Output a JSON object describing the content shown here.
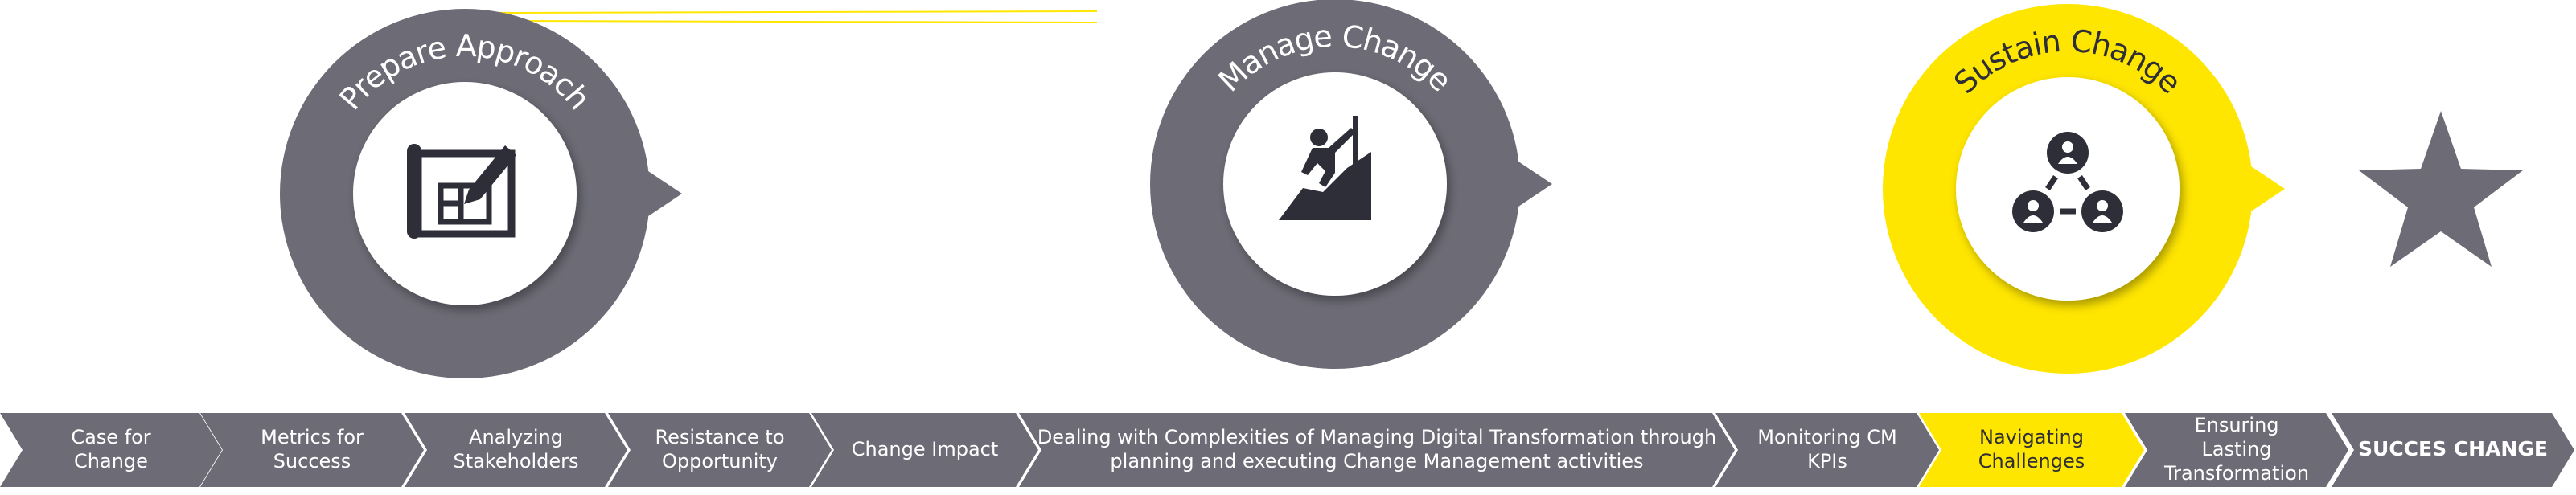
{
  "stages": [
    {
      "title": "Prepare Approach",
      "color": "#6d6c76"
    },
    {
      "title": "Manage Change",
      "color": "#6d6c76"
    },
    {
      "title": "Sustain Change",
      "color": "#ffe600"
    }
  ],
  "steps": [
    {
      "lines": [
        "Case for",
        "Change"
      ]
    },
    {
      "lines": [
        "Metrics for",
        "Success"
      ]
    },
    {
      "lines": [
        "Analyzing",
        "Stakeholders"
      ]
    },
    {
      "lines": [
        "Resistance to",
        "Opportunity"
      ]
    },
    {
      "lines": [
        "Change Impact"
      ]
    },
    {
      "lines": [
        "Dealing with Complexities of Managing Digital Transformation through",
        "planning and executing Change Management activities"
      ]
    },
    {
      "lines": [
        "Monitoring CM",
        "KPIs"
      ]
    },
    {
      "lines": [
        "Navigating",
        "Challenges"
      ]
    },
    {
      "lines": [
        "Ensuring",
        "Lasting",
        "Transformation"
      ]
    },
    {
      "lines": [
        "SUCCES CHANGE"
      ]
    }
  ]
}
